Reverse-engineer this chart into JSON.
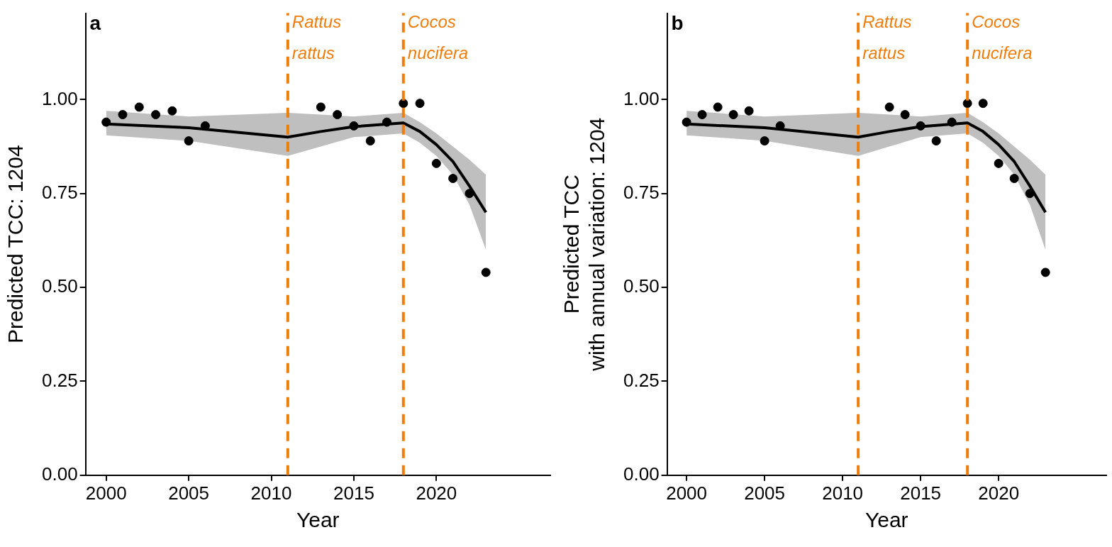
{
  "chart_data": [
    {
      "type": "line",
      "title": "a",
      "xlabel": "Year",
      "ylabel": "Predicted TCC: 1204",
      "xlim": [
        1998.75,
        2026.9
      ],
      "ylim": [
        0,
        1.23
      ],
      "xticks": [
        2000,
        2005,
        2010,
        2015,
        2020
      ],
      "yticks": [
        {
          "value": 0,
          "label": "0.00"
        },
        {
          "value": 0.25,
          "label": "0.25"
        },
        {
          "value": 0.5,
          "label": "0.50"
        },
        {
          "value": 0.75,
          "label": "0.75"
        },
        {
          "value": 1,
          "label": "1.00"
        }
      ],
      "grid": false,
      "legend": false,
      "series": [
        {
          "marker": "none",
          "color": "#000000",
          "x": [
            2000,
            2005,
            2011,
            2013,
            2015,
            2018,
            2019,
            2020,
            2021,
            2022,
            2023
          ],
          "values": [
            0.935,
            0.925,
            0.9,
            0.915,
            0.928,
            0.938,
            0.915,
            0.88,
            0.835,
            0.77,
            0.7
          ],
          "lower": [
            0.905,
            0.89,
            0.85,
            0.875,
            0.9,
            0.91,
            0.885,
            0.85,
            0.8,
            0.72,
            0.6
          ],
          "upper": [
            0.97,
            0.955,
            0.965,
            0.96,
            0.955,
            0.965,
            0.94,
            0.91,
            0.875,
            0.84,
            0.8
          ]
        },
        {
          "type": "scatter",
          "marker": "circle",
          "color": "#000000",
          "x": [
            2000,
            2001,
            2002,
            2003,
            2004,
            2005,
            2006,
            2013,
            2014,
            2015,
            2016,
            2017,
            2018,
            2019,
            2020,
            2021,
            2022,
            2023
          ],
          "values": [
            0.94,
            0.96,
            0.98,
            0.96,
            0.97,
            0.89,
            0.93,
            0.98,
            0.96,
            0.93,
            0.89,
            0.94,
            0.99,
            0.99,
            0.83,
            0.79,
            0.75,
            0.54
          ]
        }
      ],
      "ref_lines": [
        {
          "axis": "x",
          "value": 2011,
          "label": "Rattus rattus",
          "color": "#f07c0a",
          "line_style": "dashed"
        },
        {
          "axis": "x",
          "value": 2018,
          "label": "Cocos nucifera",
          "color": "#f07c0a",
          "line_style": "dashed"
        }
      ]
    },
    {
      "type": "line",
      "title": "b",
      "xlabel": "Year",
      "ylabel": "Predicted TCC\nwith annual variation: 1204",
      "xlim": [
        1998.75,
        2026.9
      ],
      "ylim": [
        0,
        1.23
      ],
      "xticks": [
        2000,
        2005,
        2010,
        2015,
        2020
      ],
      "yticks": [
        {
          "value": 0,
          "label": "0.00"
        },
        {
          "value": 0.25,
          "label": "0.25"
        },
        {
          "value": 0.5,
          "label": "0.50"
        },
        {
          "value": 0.75,
          "label": "0.75"
        },
        {
          "value": 1,
          "label": "1.00"
        }
      ],
      "grid": false,
      "legend": false,
      "series": [
        {
          "marker": "none",
          "color": "#000000",
          "x": [
            2000,
            2005,
            2011,
            2013,
            2015,
            2018,
            2019,
            2020,
            2021,
            2022,
            2023
          ],
          "values": [
            0.935,
            0.925,
            0.9,
            0.915,
            0.928,
            0.938,
            0.915,
            0.88,
            0.835,
            0.77,
            0.7
          ],
          "lower": [
            0.905,
            0.89,
            0.85,
            0.875,
            0.9,
            0.91,
            0.885,
            0.85,
            0.8,
            0.72,
            0.6
          ],
          "upper": [
            0.97,
            0.955,
            0.965,
            0.96,
            0.955,
            0.965,
            0.94,
            0.91,
            0.875,
            0.84,
            0.8
          ]
        },
        {
          "type": "scatter",
          "marker": "circle",
          "color": "#000000",
          "x": [
            2000,
            2001,
            2002,
            2003,
            2004,
            2005,
            2006,
            2013,
            2014,
            2015,
            2016,
            2017,
            2018,
            2019,
            2020,
            2021,
            2022,
            2023
          ],
          "values": [
            0.94,
            0.96,
            0.98,
            0.96,
            0.97,
            0.89,
            0.93,
            0.98,
            0.96,
            0.93,
            0.89,
            0.94,
            0.99,
            0.99,
            0.83,
            0.79,
            0.75,
            0.54
          ]
        }
      ],
      "ref_lines": [
        {
          "axis": "x",
          "value": 2011,
          "label": "Rattus rattus",
          "color": "#f07c0a",
          "line_style": "dashed"
        },
        {
          "axis": "x",
          "value": 2018,
          "label": "Cocos nucifera",
          "color": "#f07c0a",
          "line_style": "dashed"
        }
      ]
    }
  ]
}
